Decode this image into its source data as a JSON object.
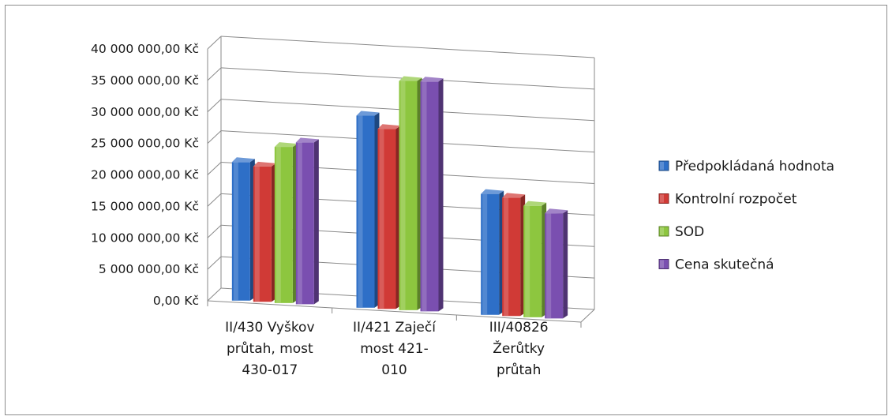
{
  "chart_data": {
    "type": "bar",
    "title": "",
    "xlabel": "",
    "ylabel": "",
    "ylim": [
      0,
      40000000
    ],
    "yticks": [
      {
        "value": 0,
        "label": "0,00 Kč"
      },
      {
        "value": 5000000,
        "label": "5 000 000,00 Kč"
      },
      {
        "value": 10000000,
        "label": "10 000 000,00 Kč"
      },
      {
        "value": 15000000,
        "label": "15 000 000,00 Kč"
      },
      {
        "value": 20000000,
        "label": "20 000 000,00 Kč"
      },
      {
        "value": 25000000,
        "label": "25 000 000,00 Kč"
      },
      {
        "value": 30000000,
        "label": "30 000 000,00 Kč"
      },
      {
        "value": 35000000,
        "label": "35 000 000,00 Kč"
      },
      {
        "value": 40000000,
        "label": "40 000 000,00 Kč"
      }
    ],
    "categories": [
      [
        "II/430 Vyškov",
        "průtah, most",
        "430-017"
      ],
      [
        "II/421 Zaječí",
        "most 421-",
        "010"
      ],
      [
        "III/40826",
        "Žerůtky",
        "průtah"
      ]
    ],
    "series": [
      {
        "name": "Předpokládaná hodnota",
        "color": "#2e6fc7",
        "values": [
          22000000,
          30500000,
          19200000
        ]
      },
      {
        "name": "Kontrolní rozpočet",
        "color": "#d03a36",
        "values": [
          21500000,
          28600000,
          18800000
        ]
      },
      {
        "name": "SOD",
        "color": "#8dc63f",
        "values": [
          24800000,
          36400000,
          17700000
        ]
      },
      {
        "name": "Cena skutečná",
        "color": "#7a4fb0",
        "values": [
          25700000,
          36500000,
          16700000
        ]
      }
    ],
    "grid": true,
    "legend": "right",
    "style": "3d-clustered-column"
  }
}
